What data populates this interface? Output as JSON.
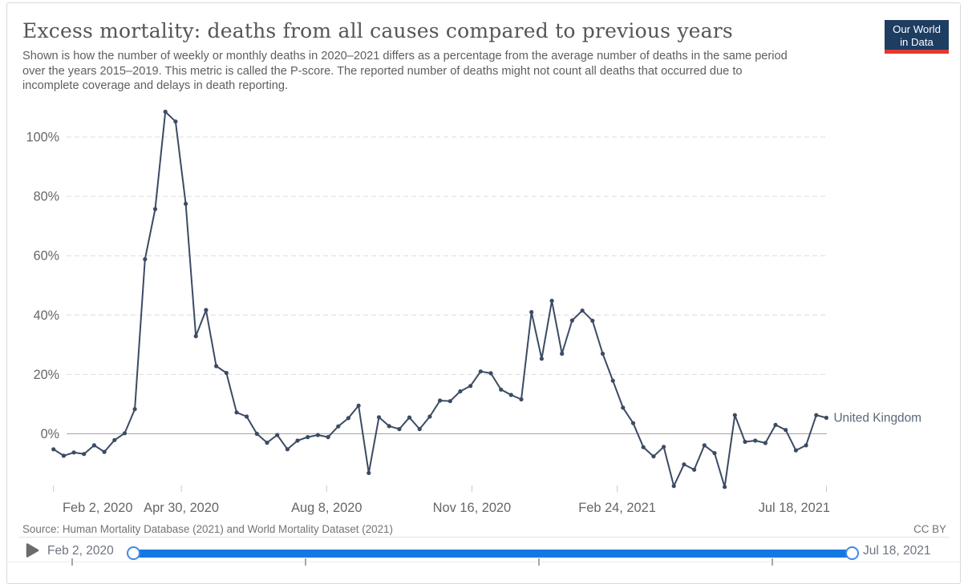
{
  "header": {
    "title": "Excess mortality: deaths from all causes compared to previous years",
    "subtitle_lines": [
      "Shown is how the number of weekly or monthly deaths in 2020–2021 differs as a percentage from the average number of deaths in the same period",
      "over the years 2015–2019. This metric is called the P-score. The reported number of deaths might not count all deaths that occurred due to",
      "incomplete coverage and delays in death reporting."
    ],
    "logo": {
      "line1": "Our World",
      "line2": "in Data",
      "bg_color": "#1d3d63",
      "bar_color": "#e0392f"
    }
  },
  "footer": {
    "source": "Source: Human Mortality Database (2021) and World Mortality Dataset (2021)",
    "license": "CC BY"
  },
  "timeline": {
    "start_label": "Feb 2, 2020",
    "end_label": "Jul 18, 2021",
    "bar_color": "#1478e3"
  },
  "chart_data": {
    "type": "line",
    "title": "Excess mortality: deaths from all causes compared to previous years",
    "y_unit": "%",
    "y_ticks": [
      0,
      20,
      40,
      60,
      80,
      100
    ],
    "ylim": [
      -20,
      112
    ],
    "grid": "dashed-horizontal",
    "zero_line": true,
    "legend_position": "end-of-line-label",
    "x_ticks": [
      {
        "label": "Feb 2, 2020",
        "day": 0
      },
      {
        "label": "Apr 30, 2020",
        "day": 88
      },
      {
        "label": "Aug 8, 2020",
        "day": 188
      },
      {
        "label": "Nov 16, 2020",
        "day": 288
      },
      {
        "label": "Feb 24, 2021",
        "day": 388
      },
      {
        "label": "Jul 18, 2021",
        "day": 532
      }
    ],
    "series": [
      {
        "name": "United Kingdom",
        "color": "#3b4b63",
        "frequency": "weekly",
        "start_date": "Feb 2, 2020",
        "end_date": "Jul 18, 2021",
        "values": [
          -5.2,
          -7.4,
          -6.3,
          -6.8,
          -3.9,
          -6.1,
          -2.1,
          0.2,
          8.3,
          58.8,
          75.7,
          108.5,
          105.2,
          77.5,
          32.9,
          41.7,
          22.8,
          20.5,
          7.2,
          5.8,
          0.0,
          -3.0,
          -0.4,
          -5.2,
          -2.3,
          -1.1,
          -0.4,
          -1.1,
          2.5,
          5.3,
          9.5,
          -13.2,
          5.6,
          2.6,
          1.6,
          5.5,
          1.6,
          5.8,
          11.2,
          11.0,
          14.3,
          16.1,
          21.0,
          20.4,
          14.9,
          13.1,
          11.6,
          41.0,
          25.3,
          44.8,
          27.0,
          38.2,
          41.5,
          38.1,
          27.0,
          17.9,
          8.8,
          3.6,
          -4.5,
          -7.6,
          -4.4,
          -17.6,
          -10.3,
          -12.1,
          -3.9,
          -6.5,
          -17.9,
          6.3,
          -2.7,
          -2.3,
          -3.1,
          3.0,
          1.3,
          -5.6,
          -3.9,
          6.3,
          5.4
        ]
      }
    ]
  }
}
